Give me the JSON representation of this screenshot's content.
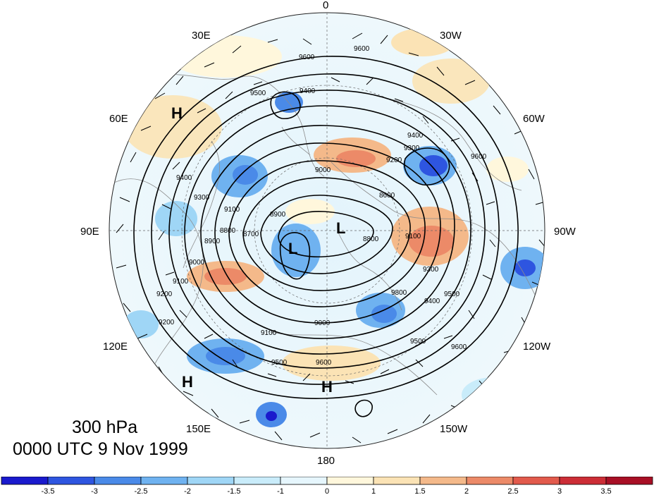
{
  "caption": {
    "level": "300 hPa",
    "time": "0000 UTC 9 Nov 1999"
  },
  "longitude_labels": [
    "0",
    "30W",
    "60W",
    "90W",
    "120W",
    "150W",
    "180",
    "150E",
    "120E",
    "90E",
    "60E",
    "30E"
  ],
  "contour_labels": [
    "9600",
    "9600",
    "9500",
    "9400",
    "9400",
    "9300",
    "9200",
    "9600",
    "9100",
    "9000",
    "8900",
    "8800",
    "8600",
    "8700",
    "8800",
    "8900",
    "9000",
    "9100",
    "9200",
    "9300",
    "9400",
    "9500",
    "9600",
    "9100",
    "9000",
    "9100",
    "9500",
    "9600",
    "9500",
    "9400",
    "9300",
    "9200",
    "9800"
  ],
  "pressure_systems": [
    "H",
    "H",
    "H",
    "L",
    "L"
  ],
  "colorbar": {
    "ticks": [
      "-3.5",
      "-3",
      "-2.5",
      "-2",
      "-1.5",
      "-1",
      "0",
      "1",
      "1.5",
      "2",
      "2.5",
      "3",
      "3.5"
    ],
    "colors": [
      "#1a1acd",
      "#2e55e0",
      "#4a8ae8",
      "#6fb2f0",
      "#9fd6f6",
      "#c9ecfa",
      "#e6f6fd",
      "#fff7dc",
      "#fbe3b5",
      "#f4b98a",
      "#ec8a68",
      "#e25a4c",
      "#cc2d36",
      "#a80f25"
    ]
  },
  "colors": {
    "land": "#8c8c8c",
    "contour": "#000000"
  }
}
